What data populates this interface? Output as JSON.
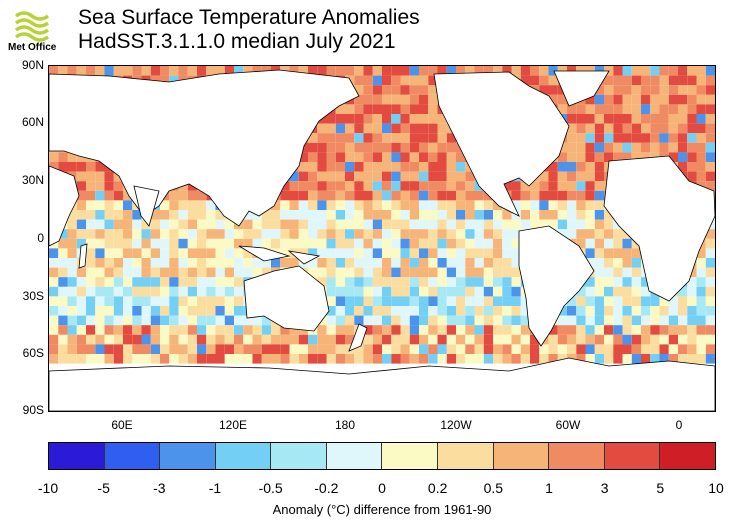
{
  "logo": {
    "text": "Met Office",
    "icon": "met-office-wave-logo"
  },
  "title": {
    "line1": "Sea Surface Temperature Anomalies",
    "line2": "HadSST.3.1.1.0 median July 2021"
  },
  "map": {
    "lat_labels": [
      "90N",
      "60N",
      "30N",
      "0",
      "30S",
      "60S",
      "90S"
    ],
    "lon_labels": [
      "60E",
      "120E",
      "180",
      "120W",
      "60W",
      "0"
    ]
  },
  "colorbar": {
    "ticks": [
      "-10",
      "-5",
      "-3",
      "-1",
      "-0.5",
      "-0.2",
      "0",
      "0.2",
      "0.5",
      "1",
      "3",
      "5",
      "10"
    ],
    "colors": [
      "#2b1ad6",
      "#2f5ef0",
      "#4c93ec",
      "#74cff5",
      "#a7e8f5",
      "#dff7fa",
      "#fcfac4",
      "#fbdda0",
      "#f7b479",
      "#f08a62",
      "#e34b40",
      "#cf1e26"
    ],
    "title": "Anomaly (°C) difference from 1961-90"
  }
}
